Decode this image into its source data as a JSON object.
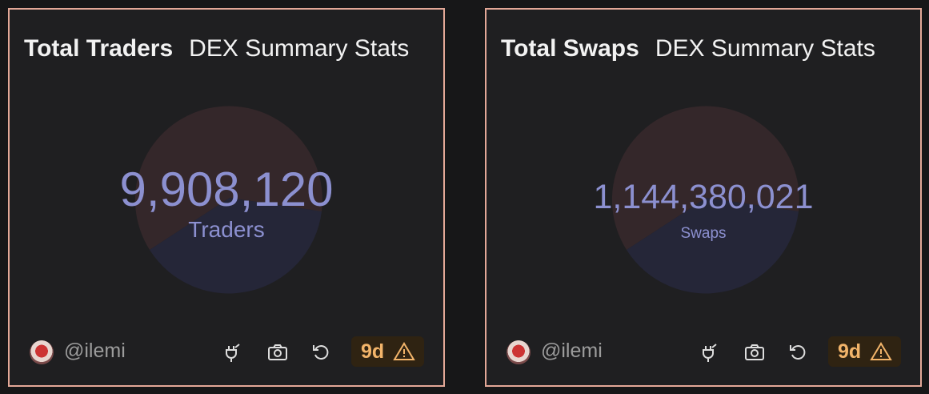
{
  "widgets": [
    {
      "title": "Total Traders",
      "subtitle": "DEX Summary Stats",
      "value": "9,908,120",
      "value_label": "Traders",
      "author": "@ilemi",
      "age": "9d"
    },
    {
      "title": "Total Swaps",
      "subtitle": "DEX Summary Stats",
      "value": "1,144,380,021",
      "value_label": "Swaps",
      "author": "@ilemi",
      "age": "9d"
    }
  ]
}
